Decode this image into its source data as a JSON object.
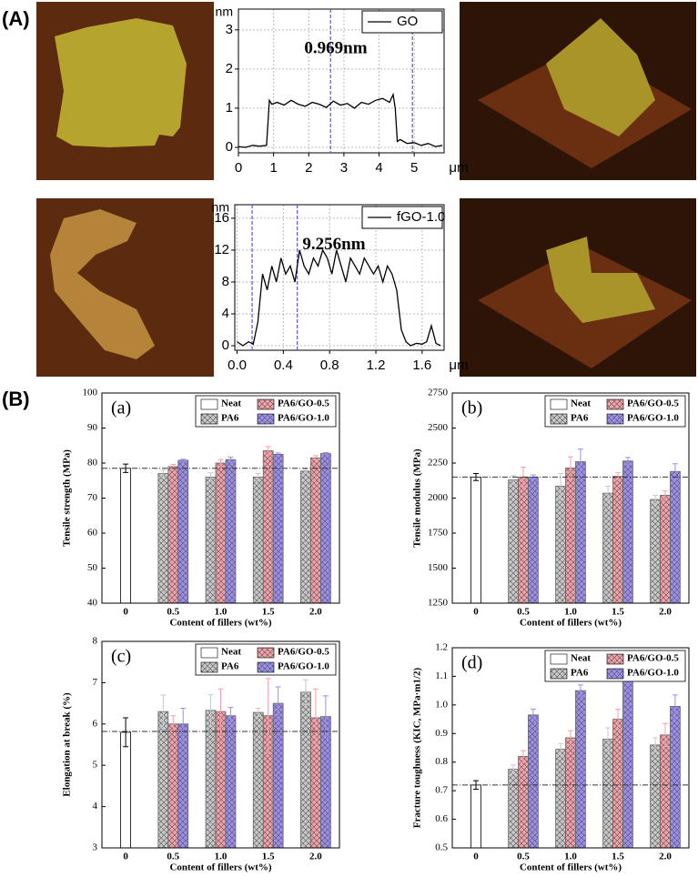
{
  "panel_labels": [
    "(A)",
    "(B)"
  ],
  "chart_data": [
    {
      "type": "line",
      "ylabel": "nm",
      "xlabel": "μm",
      "annotation": "0.969nm",
      "grid": true,
      "xlim": [
        0,
        5.85
      ],
      "ylim": [
        -0.14,
        3.53
      ],
      "xticks": [
        0,
        1,
        2,
        3,
        4,
        5
      ],
      "yticks": [
        0,
        1,
        2,
        3
      ],
      "markers": [
        2.62,
        4.95
      ],
      "marker_color": "#6a5cf0",
      "x": [
        0,
        0.2,
        0.4,
        0.6,
        0.8,
        0.88,
        0.95,
        1.1,
        1.3,
        1.5,
        1.7,
        1.9,
        2.1,
        2.3,
        2.5,
        2.7,
        2.9,
        3.1,
        3.3,
        3.5,
        3.7,
        3.9,
        4.1,
        4.3,
        4.4,
        4.46,
        4.52,
        4.6,
        4.8,
        5.0,
        5.2,
        5.4,
        5.6,
        5.8
      ],
      "series": [
        {
          "name": "GO",
          "color": "#000000",
          "values": [
            0.02,
            0.0,
            0.05,
            0.03,
            0.05,
            1.2,
            1.1,
            1.15,
            1.08,
            1.2,
            1.1,
            1.05,
            1.15,
            1.1,
            1.02,
            1.18,
            1.08,
            1.12,
            1.0,
            1.15,
            1.1,
            1.2,
            1.25,
            1.15,
            1.35,
            1.0,
            0.15,
            0.2,
            0.1,
            0.12,
            0.05,
            0.1,
            0.02,
            0.05
          ]
        }
      ]
    },
    {
      "type": "line",
      "ylabel": "nm",
      "xlabel": "μm",
      "annotation": "9.256nm",
      "grid": true,
      "xlim": [
        -0.02,
        1.79
      ],
      "ylim": [
        -0.57,
        17.7
      ],
      "xticks": [
        {
          "value": 0,
          "label": "0.0"
        },
        0.4,
        0.8,
        1.2,
        1.6
      ],
      "yticks": [
        0,
        4,
        8,
        12,
        16
      ],
      "markers": [
        0.13,
        0.52
      ],
      "marker_color": "#6a5cf0",
      "x": [
        0,
        0.05,
        0.1,
        0.14,
        0.18,
        0.22,
        0.26,
        0.3,
        0.34,
        0.38,
        0.42,
        0.46,
        0.5,
        0.54,
        0.58,
        0.62,
        0.66,
        0.7,
        0.74,
        0.78,
        0.82,
        0.86,
        0.9,
        0.94,
        0.98,
        1.02,
        1.06,
        1.1,
        1.14,
        1.18,
        1.22,
        1.26,
        1.3,
        1.34,
        1.38,
        1.42,
        1.46,
        1.5,
        1.55,
        1.6,
        1.64,
        1.68,
        1.72,
        1.76
      ],
      "series": [
        {
          "name": "fGO-1.0",
          "color": "#000000",
          "values": [
            0.5,
            0,
            0.5,
            0.2,
            3,
            9,
            7,
            10,
            8,
            11,
            9,
            10,
            8,
            12,
            10,
            9,
            11,
            10,
            12,
            11,
            9,
            12,
            10,
            8,
            11,
            10,
            9,
            11,
            10,
            9,
            10,
            8,
            10,
            9,
            7,
            2,
            0.5,
            0,
            0.3,
            0.2,
            0.5,
            2.5,
            0.3,
            0
          ]
        }
      ]
    },
    {
      "type": "bar",
      "panel": "(a)",
      "ylabel": "Tensile strength (MPa)",
      "xlabel": "Content of fillers (wt%)",
      "categories": [
        "0",
        "0.5",
        "1.0",
        "1.5",
        "2.0"
      ],
      "ylim": [
        40,
        100
      ],
      "yticks": [
        40,
        50,
        60,
        70,
        80,
        90,
        100
      ],
      "reference": 78.5,
      "series": [
        {
          "name": "Neat",
          "color": "#ffffff",
          "values": [
            78.5,
            null,
            null,
            null,
            null
          ],
          "errors": [
            1.2,
            null,
            null,
            null,
            null
          ]
        },
        {
          "name": "PA6",
          "color": "#c8c8c8",
          "values": [
            null,
            77,
            76,
            76,
            77.7
          ],
          "errors": [
            null,
            1,
            1.2,
            1,
            0.6
          ]
        },
        {
          "name": "PA6/GO-0.5",
          "color": "#f4a0a8",
          "values": [
            null,
            79,
            80,
            83.5,
            81.5
          ],
          "errors": [
            null,
            0.6,
            1,
            1.2,
            0.6
          ]
        },
        {
          "name": "PA6/GO-1.0",
          "color": "#9b8ef0",
          "values": [
            null,
            80.8,
            81,
            82.5,
            82.7
          ],
          "errors": [
            null,
            0.3,
            0.7,
            0.4,
            0.3
          ]
        }
      ]
    },
    {
      "type": "bar",
      "panel": "(b)",
      "ylabel": "Tensile modulus (MPa)",
      "xlabel": "Content of fillers (wt%)",
      "categories": [
        "0",
        "0.5",
        "1.0",
        "1.5",
        "2.0"
      ],
      "ylim": [
        1250,
        2750
      ],
      "yticks": [
        1250,
        1500,
        1750,
        2000,
        2250,
        2500,
        2750
      ],
      "reference": 2150,
      "series": [
        {
          "name": "Neat",
          "color": "#ffffff",
          "values": [
            2150,
            null,
            null,
            null,
            null
          ],
          "errors": [
            25,
            null,
            null,
            null,
            null
          ]
        },
        {
          "name": "PA6",
          "color": "#c8c8c8",
          "values": [
            null,
            2130,
            2085,
            2035,
            1990
          ],
          "errors": [
            null,
            30,
            90,
            50,
            30
          ]
        },
        {
          "name": "PA6/GO-0.5",
          "color": "#f4a0a8",
          "values": [
            null,
            2150,
            2215,
            2155,
            2020
          ],
          "errors": [
            null,
            70,
            80,
            25,
            30
          ]
        },
        {
          "name": "PA6/GO-1.0",
          "color": "#9b8ef0",
          "values": [
            null,
            2150,
            2260,
            2265,
            2190
          ],
          "errors": [
            null,
            15,
            90,
            25,
            55
          ]
        }
      ]
    },
    {
      "type": "bar",
      "panel": "(c)",
      "ylabel": "Elongation at break (%)",
      "xlabel": "Content of fillers (wt%)",
      "categories": [
        "0",
        "0.5",
        "1.0",
        "1.5",
        "2.0"
      ],
      "ylim": [
        3,
        8
      ],
      "yticks": [
        3,
        4,
        5,
        6,
        7,
        8
      ],
      "reference": 5.82,
      "series": [
        {
          "name": "Neat",
          "color": "#ffffff",
          "values": [
            5.8,
            null,
            null,
            null,
            null
          ],
          "errors": [
            0.35,
            null,
            null,
            null,
            null
          ]
        },
        {
          "name": "PA6",
          "color": "#c8c8c8",
          "values": [
            null,
            6.3,
            6.33,
            6.28,
            6.77
          ],
          "errors": [
            null,
            0.4,
            0.38,
            0.1,
            0.3
          ]
        },
        {
          "name": "PA6/GO-0.5",
          "color": "#f4a0a8",
          "values": [
            null,
            6.0,
            6.3,
            6.2,
            6.15
          ],
          "errors": [
            null,
            0.2,
            0.55,
            0.9,
            0.7
          ]
        },
        {
          "name": "PA6/GO-1.0",
          "color": "#9b8ef0",
          "values": [
            null,
            6.0,
            6.2,
            6.5,
            6.18
          ],
          "errors": [
            null,
            0.38,
            0.2,
            0.4,
            0.5
          ]
        }
      ]
    },
    {
      "type": "bar",
      "panel": "(d)",
      "ylabel": "Fracture toughness (KIC, MPa·m1/2)",
      "xlabel": "Content of fillers (wt%)",
      "categories": [
        "0",
        "0.5",
        "1.0",
        "1.5",
        "2.0"
      ],
      "ylim": [
        0.5,
        1.2
      ],
      "yticks": [
        0.5,
        0.6,
        0.7,
        0.8,
        0.9,
        {
          "value": 1,
          "label": "1.0"
        },
        1.1,
        1.2
      ],
      "reference": 0.72,
      "series": [
        {
          "name": "Neat",
          "color": "#ffffff",
          "values": [
            0.72,
            null,
            null,
            null,
            null
          ],
          "errors": [
            0.015,
            null,
            null,
            null,
            null
          ]
        },
        {
          "name": "PA6",
          "color": "#c8c8c8",
          "values": [
            null,
            0.775,
            0.845,
            0.88,
            0.86
          ],
          "errors": [
            null,
            0.015,
            0.02,
            0.04,
            0.025
          ]
        },
        {
          "name": "PA6/GO-0.5",
          "color": "#f4a0a8",
          "values": [
            null,
            0.82,
            0.885,
            0.95,
            0.895
          ],
          "errors": [
            null,
            0.02,
            0.025,
            0.035,
            0.04
          ]
        },
        {
          "name": "PA6/GO-1.0",
          "color": "#9b8ef0",
          "values": [
            null,
            0.965,
            1.05,
            1.095,
            0.995
          ],
          "errors": [
            null,
            0.02,
            0.02,
            0.02,
            0.04
          ]
        }
      ]
    }
  ]
}
